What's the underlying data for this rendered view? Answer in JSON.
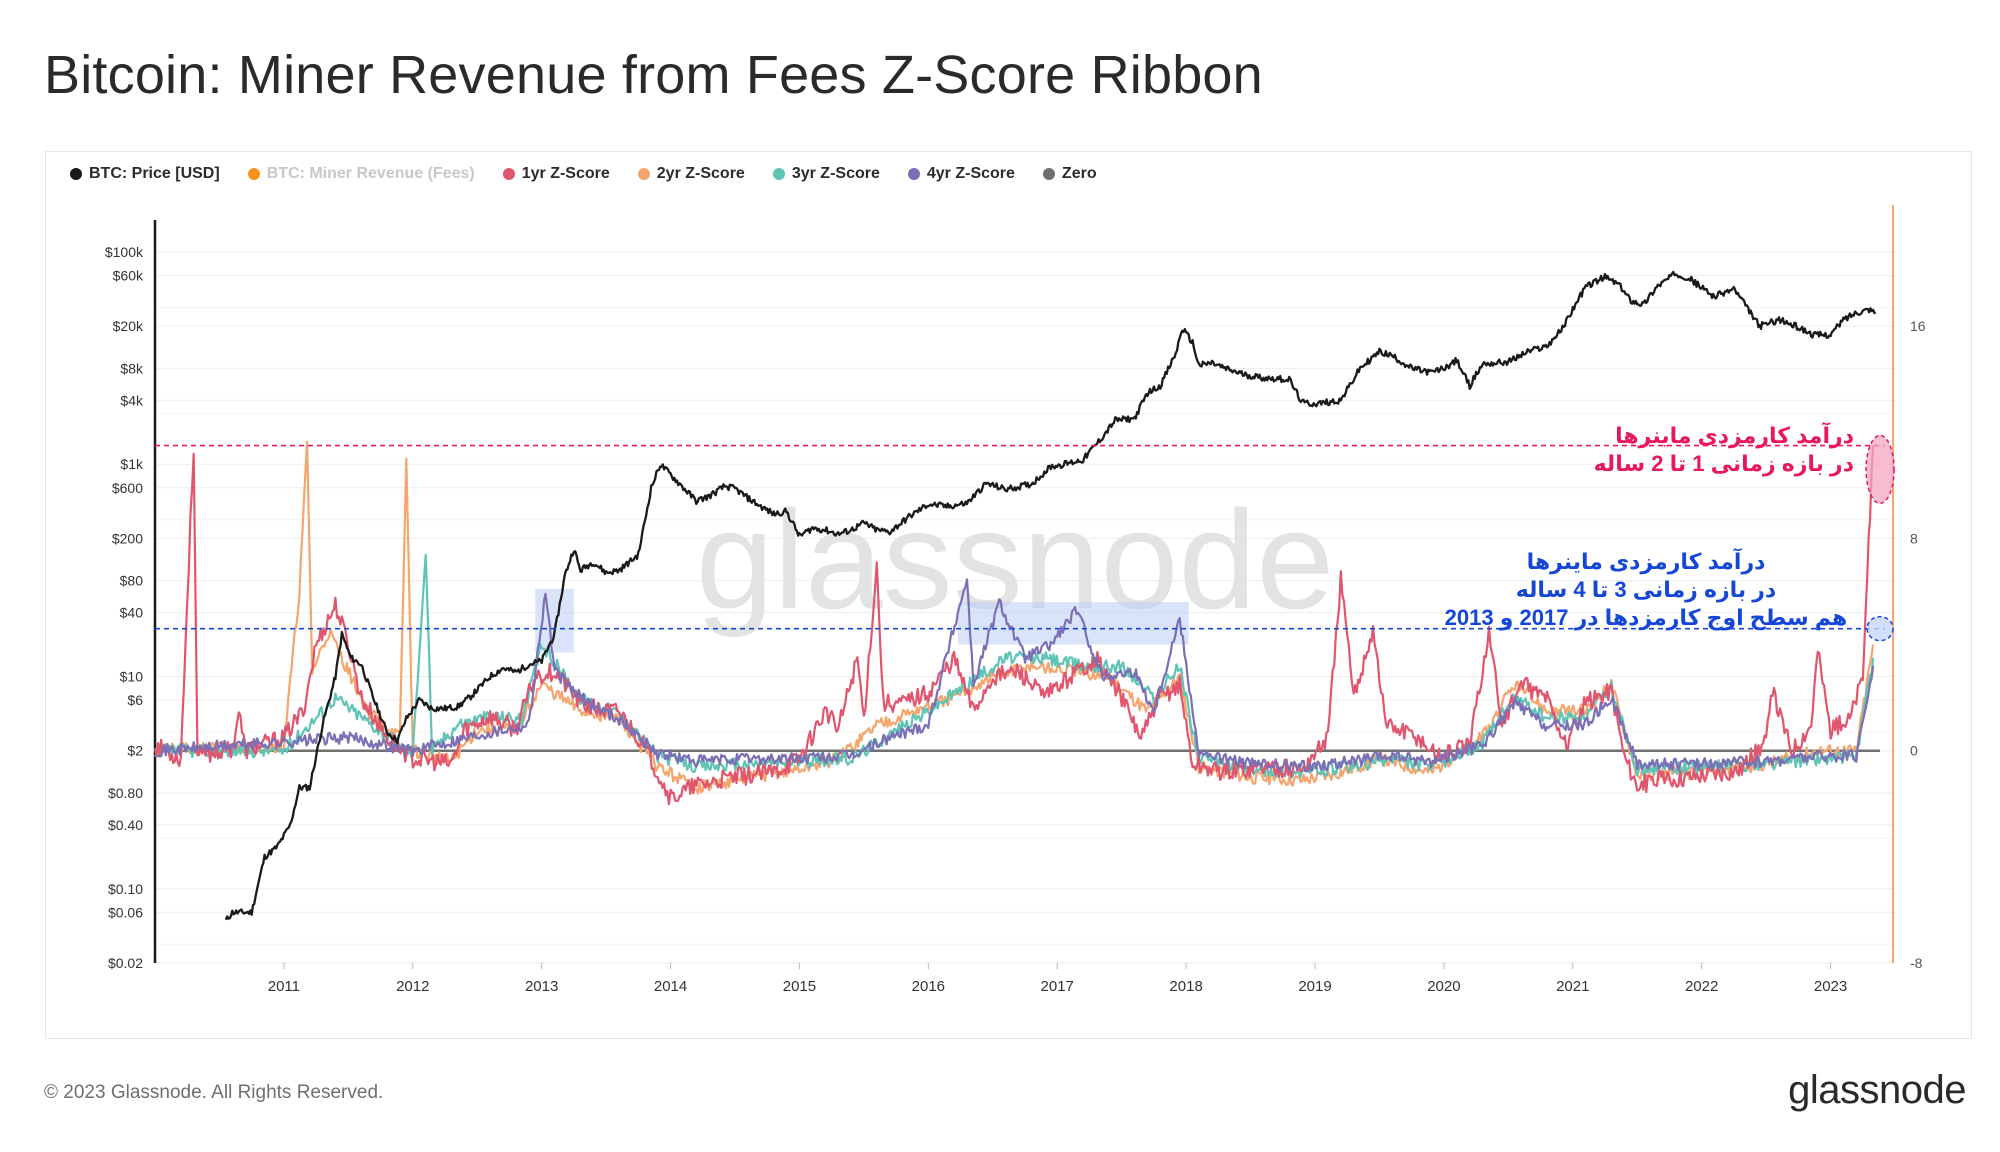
{
  "title": "Bitcoin: Miner Revenue from Fees Z-Score Ribbon",
  "footer": "© 2023 Glassnode. All Rights Reserved.",
  "brand": "glassnode",
  "watermark": "glassnode",
  "legend": [
    {
      "label": "BTC: Price [USD]",
      "color": "#1a1a1a",
      "muted": false
    },
    {
      "label": "BTC: Miner Revenue (Fees)",
      "color": "#f7931a",
      "muted": true
    },
    {
      "label": "1yr Z-Score",
      "color": "#e0566e",
      "muted": false
    },
    {
      "label": "2yr Z-Score",
      "color": "#f5a56d",
      "muted": false
    },
    {
      "label": "3yr Z-Score",
      "color": "#5ec4b6",
      "muted": false
    },
    {
      "label": "4yr Z-Score",
      "color": "#7b6fb5",
      "muted": false
    },
    {
      "label": "Zero",
      "color": "#707070",
      "muted": false
    }
  ],
  "annotations": {
    "one_two_year": [
      "درآمد کارمزدی ماینرها",
      "در بازه زمانی 1 تا 2 ساله"
    ],
    "three_four_year": [
      "درآمد کارمزدی ماینرها",
      "در بازه زمانی 3 تا 4 ساله",
      "هم سطح اوج کارمزدها در  2017 و 2013"
    ]
  },
  "colors": {
    "price": "#1a1a1a",
    "z1": "#e0566e",
    "z2": "#f5a56d",
    "z3": "#5ec4b6",
    "z4": "#7b6fb5",
    "zero": "#707070",
    "fees_axis": "#f5a56d",
    "ann_red": "#e8185e",
    "ann_blue": "#1447d8",
    "highlight": "#b9cdf5"
  },
  "chart_data": {
    "type": "line",
    "title": "Bitcoin: Miner Revenue from Fees Z-Score Ribbon",
    "x_range": [
      "2010-01-01",
      "2023-06-01"
    ],
    "x_ticks": [
      "2011",
      "2012",
      "2013",
      "2014",
      "2015",
      "2016",
      "2017",
      "2018",
      "2019",
      "2020",
      "2021",
      "2022",
      "2023"
    ],
    "y_left": {
      "scale": "log",
      "label": "",
      "ticks": [
        {
          "label": "$100k",
          "value": 100000
        },
        {
          "label": "$60k",
          "value": 60000
        },
        {
          "label": "$20k",
          "value": 20000
        },
        {
          "label": "$8k",
          "value": 8000
        },
        {
          "label": "$4k",
          "value": 4000
        },
        {
          "label": "$1k",
          "value": 1000
        },
        {
          "label": "$600",
          "value": 600
        },
        {
          "label": "$200",
          "value": 200
        },
        {
          "label": "$80",
          "value": 80
        },
        {
          "label": "$40",
          "value": 40
        },
        {
          "label": "$10",
          "value": 10
        },
        {
          "label": "$6",
          "value": 6
        },
        {
          "label": "$2",
          "value": 2
        },
        {
          "label": "$0.80",
          "value": 0.8
        },
        {
          "label": "$0.40",
          "value": 0.4
        },
        {
          "label": "$0.10",
          "value": 0.1
        },
        {
          "label": "$0.06",
          "value": 0.06
        },
        {
          "label": "$0.02",
          "value": 0.02
        }
      ]
    },
    "y_right": {
      "scale": "linear",
      "label": "",
      "range": [
        -8,
        20
      ],
      "ticks": [
        16,
        8,
        0,
        -8
      ]
    },
    "reference_lines": [
      {
        "name": "1-2yr level",
        "z": 11.5,
        "color": "#e8185e"
      },
      {
        "name": "3-4yr level",
        "z": 4.6,
        "color": "#1447d8"
      }
    ],
    "highlight_periods": [
      {
        "start": 2012.95,
        "end": 2013.25,
        "z_top": 6.1,
        "z_bottom": 3.7
      },
      {
        "start": 2016.23,
        "end": 2018.02,
        "z_top": 5.6,
        "z_bottom": 4.0
      }
    ],
    "price": [
      [
        2010.55,
        0.05
      ],
      [
        2010.6,
        0.06
      ],
      [
        2010.75,
        0.06
      ],
      [
        2010.85,
        0.2
      ],
      [
        2010.95,
        0.25
      ],
      [
        2011.05,
        0.4
      ],
      [
        2011.12,
        0.9
      ],
      [
        2011.2,
        0.9
      ],
      [
        2011.3,
        3.5
      ],
      [
        2011.4,
        10
      ],
      [
        2011.45,
        25
      ],
      [
        2011.52,
        15
      ],
      [
        2011.6,
        13
      ],
      [
        2011.7,
        6
      ],
      [
        2011.8,
        3
      ],
      [
        2011.88,
        2.5
      ],
      [
        2011.95,
        4
      ],
      [
        2012.05,
        6
      ],
      [
        2012.15,
        5
      ],
      [
        2012.25,
        5
      ],
      [
        2012.35,
        5.2
      ],
      [
        2012.45,
        6.5
      ],
      [
        2012.6,
        10
      ],
      [
        2012.7,
        12
      ],
      [
        2012.8,
        11
      ],
      [
        2012.9,
        13
      ],
      [
        2013.0,
        14
      ],
      [
        2013.1,
        25
      ],
      [
        2013.18,
        90
      ],
      [
        2013.25,
        160
      ],
      [
        2013.3,
        100
      ],
      [
        2013.4,
        120
      ],
      [
        2013.5,
        95
      ],
      [
        2013.6,
        100
      ],
      [
        2013.75,
        140
      ],
      [
        2013.85,
        600
      ],
      [
        2013.92,
        1000
      ],
      [
        2014.0,
        800
      ],
      [
        2014.1,
        600
      ],
      [
        2014.2,
        450
      ],
      [
        2014.3,
        500
      ],
      [
        2014.42,
        620
      ],
      [
        2014.5,
        590
      ],
      [
        2014.6,
        480
      ],
      [
        2014.7,
        400
      ],
      [
        2014.8,
        340
      ],
      [
        2014.9,
        360
      ],
      [
        2015.0,
        210
      ],
      [
        2015.1,
        250
      ],
      [
        2015.2,
        240
      ],
      [
        2015.3,
        220
      ],
      [
        2015.4,
        240
      ],
      [
        2015.5,
        280
      ],
      [
        2015.6,
        240
      ],
      [
        2015.7,
        230
      ],
      [
        2015.85,
        320
      ],
      [
        2016.0,
        420
      ],
      [
        2016.15,
        400
      ],
      [
        2016.3,
        430
      ],
      [
        2016.45,
        660
      ],
      [
        2016.6,
        580
      ],
      [
        2016.8,
        650
      ],
      [
        2016.95,
        950
      ],
      [
        2017.05,
        1000
      ],
      [
        2017.2,
        1100
      ],
      [
        2017.35,
        1800
      ],
      [
        2017.45,
        2600
      ],
      [
        2017.6,
        2700
      ],
      [
        2017.7,
        4700
      ],
      [
        2017.8,
        5500
      ],
      [
        2017.92,
        11000
      ],
      [
        2017.97,
        19000
      ],
      [
        2018.05,
        14000
      ],
      [
        2018.1,
        8500
      ],
      [
        2018.2,
        9000
      ],
      [
        2018.3,
        8000
      ],
      [
        2018.45,
        7000
      ],
      [
        2018.6,
        6500
      ],
      [
        2018.8,
        6300
      ],
      [
        2018.9,
        3800
      ],
      [
        2019.0,
        3700
      ],
      [
        2019.2,
        4000
      ],
      [
        2019.35,
        8000
      ],
      [
        2019.5,
        11500
      ],
      [
        2019.6,
        10500
      ],
      [
        2019.75,
        8000
      ],
      [
        2019.9,
        7300
      ],
      [
        2020.0,
        8000
      ],
      [
        2020.1,
        9500
      ],
      [
        2020.2,
        5500
      ],
      [
        2020.3,
        8800
      ],
      [
        2020.5,
        9200
      ],
      [
        2020.65,
        11500
      ],
      [
        2020.8,
        13000
      ],
      [
        2020.92,
        19000
      ],
      [
        2021.0,
        29000
      ],
      [
        2021.1,
        47000
      ],
      [
        2021.25,
        58000
      ],
      [
        2021.35,
        50000
      ],
      [
        2021.45,
        35000
      ],
      [
        2021.55,
        32000
      ],
      [
        2021.65,
        47000
      ],
      [
        2021.8,
        63000
      ],
      [
        2021.9,
        57000
      ],
      [
        2022.0,
        46000
      ],
      [
        2022.1,
        38000
      ],
      [
        2022.25,
        45000
      ],
      [
        2022.35,
        30000
      ],
      [
        2022.45,
        20000
      ],
      [
        2022.6,
        23000
      ],
      [
        2022.75,
        19500
      ],
      [
        2022.87,
        16500
      ],
      [
        2023.0,
        16600
      ],
      [
        2023.1,
        23000
      ],
      [
        2023.2,
        27000
      ],
      [
        2023.3,
        29000
      ],
      [
        2023.35,
        27000
      ]
    ],
    "z1": [
      [
        2010.0,
        0.2
      ],
      [
        2010.2,
        -0.3
      ],
      [
        2010.3,
        11.5
      ],
      [
        2010.33,
        -0.2
      ],
      [
        2010.6,
        0.1
      ],
      [
        2010.65,
        1.5
      ],
      [
        2010.7,
        0
      ],
      [
        2011.0,
        0.5
      ],
      [
        2011.15,
        1.5
      ],
      [
        2011.25,
        4
      ],
      [
        2011.4,
        5.5
      ],
      [
        2011.5,
        4
      ],
      [
        2011.6,
        2
      ],
      [
        2011.8,
        0.5
      ],
      [
        2012.0,
        -0.3
      ],
      [
        2012.3,
        -0.5
      ],
      [
        2012.4,
        0.8
      ],
      [
        2012.6,
        1.3
      ],
      [
        2012.8,
        0.8
      ],
      [
        2012.95,
        2.8
      ],
      [
        2013.1,
        3
      ],
      [
        2013.3,
        1.8
      ],
      [
        2013.45,
        1.5
      ],
      [
        2013.6,
        1.5
      ],
      [
        2013.75,
        0.5
      ],
      [
        2013.9,
        -0.8
      ],
      [
        2014.0,
        -1.8
      ],
      [
        2014.2,
        -1.3
      ],
      [
        2014.5,
        -1.0
      ],
      [
        2014.8,
        -0.8
      ],
      [
        2015.0,
        -0.3
      ],
      [
        2015.2,
        1.5
      ],
      [
        2015.3,
        0.8
      ],
      [
        2015.45,
        3.5
      ],
      [
        2015.5,
        1.2
      ],
      [
        2015.6,
        7
      ],
      [
        2015.65,
        1.8
      ],
      [
        2015.8,
        1.8
      ],
      [
        2016.0,
        2.2
      ],
      [
        2016.2,
        3.5
      ],
      [
        2016.35,
        1.5
      ],
      [
        2016.5,
        2.8
      ],
      [
        2016.7,
        3
      ],
      [
        2016.9,
        2
      ],
      [
        2017.1,
        2.8
      ],
      [
        2017.3,
        3.5
      ],
      [
        2017.5,
        2
      ],
      [
        2017.65,
        0.5
      ],
      [
        2017.8,
        2
      ],
      [
        2017.95,
        2.5
      ],
      [
        2018.05,
        -0.5
      ],
      [
        2018.3,
        -0.8
      ],
      [
        2018.6,
        -0.6
      ],
      [
        2018.9,
        -0.7
      ],
      [
        2019.1,
        0.5
      ],
      [
        2019.2,
        6.5
      ],
      [
        2019.3,
        2
      ],
      [
        2019.45,
        4.6
      ],
      [
        2019.55,
        1
      ],
      [
        2019.8,
        0.5
      ],
      [
        2019.95,
        -0.2
      ],
      [
        2020.2,
        0.2
      ],
      [
        2020.35,
        4.5
      ],
      [
        2020.45,
        1
      ],
      [
        2020.6,
        2.5
      ],
      [
        2020.8,
        2
      ],
      [
        2020.95,
        0.2
      ],
      [
        2021.1,
        1.8
      ],
      [
        2021.3,
        2.3
      ],
      [
        2021.4,
        -0.2
      ],
      [
        2021.5,
        -1.3
      ],
      [
        2021.7,
        -1.1
      ],
      [
        2022.0,
        -0.9
      ],
      [
        2022.3,
        -0.7
      ],
      [
        2022.5,
        0.4
      ],
      [
        2022.55,
        2.2
      ],
      [
        2022.7,
        0
      ],
      [
        2022.85,
        1
      ],
      [
        2022.9,
        3.8
      ],
      [
        2023.0,
        0.8
      ],
      [
        2023.15,
        1.2
      ],
      [
        2023.25,
        2.8
      ],
      [
        2023.33,
        11.5
      ]
    ],
    "z2": [
      [
        2010.0,
        0
      ],
      [
        2011.0,
        0.2
      ],
      [
        2011.12,
        6
      ],
      [
        2011.18,
        11.5
      ],
      [
        2011.22,
        3
      ],
      [
        2011.35,
        4.5
      ],
      [
        2011.5,
        3
      ],
      [
        2011.65,
        1.5
      ],
      [
        2011.9,
        0.5
      ],
      [
        2011.95,
        11
      ],
      [
        2012.0,
        0
      ],
      [
        2012.3,
        -0.4
      ],
      [
        2012.5,
        0.8
      ],
      [
        2012.8,
        0.8
      ],
      [
        2013.0,
        2.5
      ],
      [
        2013.3,
        1.5
      ],
      [
        2013.6,
        1.2
      ],
      [
        2013.9,
        -0.6
      ],
      [
        2014.2,
        -1.4
      ],
      [
        2014.6,
        -1.0
      ],
      [
        2015.0,
        -0.7
      ],
      [
        2015.3,
        -0.3
      ],
      [
        2015.6,
        1.0
      ],
      [
        2015.9,
        1.5
      ],
      [
        2016.2,
        2
      ],
      [
        2016.5,
        2.8
      ],
      [
        2016.8,
        3.2
      ],
      [
        2017.1,
        3.0
      ],
      [
        2017.4,
        2.8
      ],
      [
        2017.7,
        1.5
      ],
      [
        2017.95,
        2.8
      ],
      [
        2018.1,
        -0.6
      ],
      [
        2018.5,
        -1.0
      ],
      [
        2018.9,
        -1.1
      ],
      [
        2019.2,
        -0.8
      ],
      [
        2019.5,
        -0.3
      ],
      [
        2019.9,
        -0.8
      ],
      [
        2020.3,
        0.5
      ],
      [
        2020.55,
        2.5
      ],
      [
        2020.8,
        1.5
      ],
      [
        2021.1,
        1.5
      ],
      [
        2021.3,
        2.5
      ],
      [
        2021.5,
        -0.9
      ],
      [
        2022.0,
        -0.8
      ],
      [
        2022.5,
        -0.5
      ],
      [
        2022.9,
        0
      ],
      [
        2023.2,
        0
      ],
      [
        2023.33,
        4.0
      ]
    ],
    "z3": [
      [
        2010.0,
        0
      ],
      [
        2011.0,
        0
      ],
      [
        2011.4,
        2
      ],
      [
        2011.9,
        0.2
      ],
      [
        2012.0,
        -0.1
      ],
      [
        2012.1,
        7.5
      ],
      [
        2012.15,
        0
      ],
      [
        2012.35,
        1.0
      ],
      [
        2012.6,
        1.3
      ],
      [
        2012.85,
        1.2
      ],
      [
        2013.0,
        4
      ],
      [
        2013.3,
        2
      ],
      [
        2013.6,
        1.4
      ],
      [
        2013.9,
        -0.2
      ],
      [
        2014.2,
        -0.6
      ],
      [
        2014.6,
        -0.5
      ],
      [
        2015.0,
        -0.4
      ],
      [
        2015.4,
        -0.3
      ],
      [
        2015.7,
        0.6
      ],
      [
        2016.0,
        1.5
      ],
      [
        2016.3,
        2.5
      ],
      [
        2016.6,
        3.5
      ],
      [
        2016.9,
        3.5
      ],
      [
        2017.2,
        3.2
      ],
      [
        2017.5,
        3.2
      ],
      [
        2017.75,
        2
      ],
      [
        2017.95,
        3.2
      ],
      [
        2018.1,
        -0.3
      ],
      [
        2018.5,
        -0.7
      ],
      [
        2018.9,
        -0.8
      ],
      [
        2019.3,
        -0.6
      ],
      [
        2019.6,
        -0.3
      ],
      [
        2019.9,
        -0.6
      ],
      [
        2020.3,
        0.3
      ],
      [
        2020.55,
        2.0
      ],
      [
        2020.8,
        1.2
      ],
      [
        2021.1,
        1.3
      ],
      [
        2021.3,
        2.4
      ],
      [
        2021.5,
        -0.7
      ],
      [
        2022.0,
        -0.6
      ],
      [
        2022.5,
        -0.5
      ],
      [
        2022.9,
        -0.3
      ],
      [
        2023.2,
        -0.2
      ],
      [
        2023.33,
        3.5
      ]
    ],
    "z4": [
      [
        2010.0,
        0
      ],
      [
        2011.5,
        0.5
      ],
      [
        2012.0,
        0
      ],
      [
        2012.5,
        0.6
      ],
      [
        2012.9,
        1.0
      ],
      [
        2013.03,
        6
      ],
      [
        2013.1,
        3
      ],
      [
        2013.3,
        2
      ],
      [
        2013.6,
        1.2
      ],
      [
        2013.9,
        -0.1
      ],
      [
        2014.2,
        -0.4
      ],
      [
        2014.6,
        -0.3
      ],
      [
        2015.0,
        -0.3
      ],
      [
        2015.4,
        -0.2
      ],
      [
        2015.7,
        0.5
      ],
      [
        2016.0,
        1.0
      ],
      [
        2016.3,
        6.5
      ],
      [
        2016.35,
        2.5
      ],
      [
        2016.55,
        5.6
      ],
      [
        2016.75,
        3.5
      ],
      [
        2016.95,
        4.0
      ],
      [
        2017.15,
        5.3
      ],
      [
        2017.35,
        2.8
      ],
      [
        2017.6,
        3
      ],
      [
        2017.75,
        1.5
      ],
      [
        2017.95,
        5.0
      ],
      [
        2018.1,
        -0.1
      ],
      [
        2018.5,
        -0.5
      ],
      [
        2018.9,
        -0.6
      ],
      [
        2019.3,
        -0.4
      ],
      [
        2019.6,
        -0.2
      ],
      [
        2019.9,
        -0.4
      ],
      [
        2020.3,
        0.2
      ],
      [
        2020.55,
        1.8
      ],
      [
        2020.8,
        0.9
      ],
      [
        2021.1,
        1.0
      ],
      [
        2021.3,
        2.0
      ],
      [
        2021.5,
        -0.5
      ],
      [
        2022.0,
        -0.5
      ],
      [
        2022.5,
        -0.4
      ],
      [
        2022.9,
        -0.2
      ],
      [
        2023.2,
        -0.2
      ],
      [
        2023.33,
        3.2
      ]
    ]
  }
}
